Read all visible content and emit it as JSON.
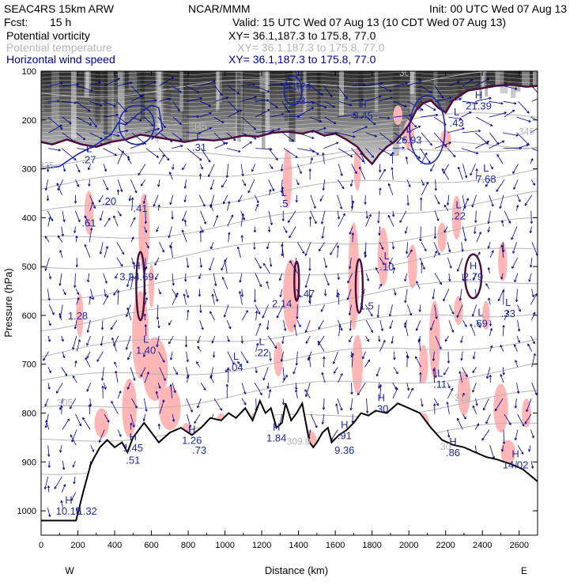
{
  "header": {
    "model": "SEAC4RS 15km ARW",
    "org": "NCAR/MMM",
    "init": "Init: 00 UTC Wed 07 Aug 13",
    "fcst_label": "Fcst:",
    "fcst_value": "15 h",
    "valid": "Valid: 15 UTC Wed 07 Aug 13 (10 CDT Wed 07 Aug 13)",
    "fields": [
      {
        "name": "Potential vorticity",
        "xy": "XY=  36.1,187.3 to 175.8, 77.0",
        "color": "#000000"
      },
      {
        "name": "Potential temperature",
        "xy": "XY=  36.1,187.3 to 175.8, 77.0",
        "color": "#b4b4b4"
      },
      {
        "name": "Horizontal wind speed",
        "xy": "XY=  36.1,187.3 to 175.8, 77.0",
        "color": "#00008b"
      }
    ]
  },
  "chart_data": {
    "type": "cross-section",
    "xlabel": "Distance (km)",
    "ylabel": "Pressure (hPa)",
    "xlim": [
      0,
      2700
    ],
    "ylim": [
      1050,
      100
    ],
    "x_ticks": [
      0,
      200,
      400,
      600,
      800,
      1000,
      1200,
      1400,
      1600,
      1800,
      2000,
      2200,
      2400,
      2600
    ],
    "y_ticks": [
      100,
      200,
      300,
      400,
      500,
      600,
      700,
      800,
      900,
      1000
    ],
    "x_end_labels": {
      "left": "W",
      "right": "E"
    },
    "colors": {
      "pv_contour": "#4b0a3c",
      "wind_contour": "#1e28a0",
      "theta": "#b4b4b4",
      "pv_fill": "#ffb6b6",
      "wind_vector": "#00008b"
    },
    "terrain": [
      [
        0,
        1020
      ],
      [
        190,
        1020
      ],
      [
        230,
        960
      ],
      [
        270,
        905
      ],
      [
        290,
        890
      ],
      [
        320,
        870
      ],
      [
        360,
        855
      ],
      [
        400,
        870
      ],
      [
        440,
        860
      ],
      [
        470,
        880
      ],
      [
        500,
        850
      ],
      [
        540,
        830
      ],
      [
        560,
        820
      ],
      [
        600,
        840
      ],
      [
        640,
        860
      ],
      [
        700,
        840
      ],
      [
        760,
        830
      ],
      [
        820,
        845
      ],
      [
        870,
        830
      ],
      [
        920,
        810
      ],
      [
        980,
        815
      ],
      [
        1020,
        800
      ],
      [
        1060,
        810
      ],
      [
        1110,
        790
      ],
      [
        1150,
        815
      ],
      [
        1190,
        775
      ],
      [
        1220,
        800
      ],
      [
        1250,
        790
      ],
      [
        1280,
        830
      ],
      [
        1310,
        820
      ],
      [
        1330,
        780
      ],
      [
        1360,
        815
      ],
      [
        1390,
        800
      ],
      [
        1420,
        780
      ],
      [
        1440,
        820
      ],
      [
        1460,
        860
      ],
      [
        1480,
        870
      ],
      [
        1500,
        860
      ],
      [
        1530,
        840
      ],
      [
        1560,
        830
      ],
      [
        1580,
        860
      ],
      [
        1620,
        845
      ],
      [
        1660,
        835
      ],
      [
        1700,
        820
      ],
      [
        1740,
        800
      ],
      [
        1780,
        805
      ],
      [
        1820,
        795
      ],
      [
        1880,
        800
      ],
      [
        1940,
        780
      ],
      [
        2000,
        790
      ],
      [
        2060,
        800
      ],
      [
        2120,
        830
      ],
      [
        2180,
        855
      ],
      [
        2240,
        865
      ],
      [
        2300,
        870
      ],
      [
        2360,
        880
      ],
      [
        2420,
        890
      ],
      [
        2480,
        895
      ],
      [
        2560,
        905
      ],
      [
        2620,
        915
      ],
      [
        2700,
        940
      ]
    ],
    "tropopause": [
      [
        0,
        245
      ],
      [
        60,
        250
      ],
      [
        140,
        240
      ],
      [
        220,
        250
      ],
      [
        300,
        255
      ],
      [
        380,
        245
      ],
      [
        460,
        240
      ],
      [
        540,
        230
      ],
      [
        620,
        235
      ],
      [
        700,
        240
      ],
      [
        780,
        245
      ],
      [
        860,
        240
      ],
      [
        940,
        242
      ],
      [
        1020,
        238
      ],
      [
        1100,
        232
      ],
      [
        1180,
        234
      ],
      [
        1260,
        226
      ],
      [
        1340,
        224
      ],
      [
        1420,
        228
      ],
      [
        1480,
        222
      ],
      [
        1540,
        232
      ],
      [
        1600,
        228
      ],
      [
        1660,
        240
      ],
      [
        1720,
        255
      ],
      [
        1760,
        275
      ],
      [
        1800,
        290
      ],
      [
        1840,
        270
      ],
      [
        1880,
        255
      ],
      [
        1920,
        245
      ],
      [
        1960,
        230
      ],
      [
        2000,
        210
      ],
      [
        2040,
        180
      ],
      [
        2080,
        165
      ],
      [
        2120,
        160
      ],
      [
        2160,
        175
      ],
      [
        2200,
        185
      ],
      [
        2240,
        160
      ],
      [
        2280,
        150
      ],
      [
        2320,
        140
      ],
      [
        2400,
        135
      ],
      [
        2480,
        130
      ],
      [
        2560,
        128
      ],
      [
        2640,
        132
      ],
      [
        2700,
        130
      ]
    ],
    "theta_labels": [
      {
        "x": 860,
        "p": 220,
        "text": "345"
      },
      {
        "x": 2640,
        "p": 230,
        "text": "345"
      },
      {
        "x": 30,
        "p": 300,
        "text": "325"
      },
      {
        "x": 1990,
        "p": 110,
        "text": "300"
      },
      {
        "x": 130,
        "p": 785,
        "text": "305"
      },
      {
        "x": 2290,
        "p": 775,
        "text": "315"
      },
      {
        "x": 1400,
        "p": 865,
        "text": "309.9"
      },
      {
        "x": 2200,
        "p": 875,
        "text": "30"
      }
    ],
    "extrema": [
      {
        "x": 1400,
        "p": 135,
        "letter": "H",
        "value": "21.24"
      },
      {
        "x": 1400,
        "p": 165,
        "letter": "",
        "value": "1.3"
      },
      {
        "x": 2380,
        "p": 175,
        "letter": "H",
        "value": "21.39"
      },
      {
        "x": 1750,
        "p": 195,
        "letter": "H",
        "value": "3.45"
      },
      {
        "x": 2260,
        "p": 210,
        "letter": "L",
        "value": ".43"
      },
      {
        "x": 2000,
        "p": 245,
        "letter": "L",
        "value": "26.93"
      },
      {
        "x": 860,
        "p": 260,
        "letter": "L",
        "value": ".31"
      },
      {
        "x": 260,
        "p": 285,
        "letter": "L",
        "value": ".27"
      },
      {
        "x": 2420,
        "p": 325,
        "letter": "L",
        "value": "7.68"
      },
      {
        "x": 370,
        "p": 370,
        "letter": "",
        "value": ".20"
      },
      {
        "x": 540,
        "p": 385,
        "letter": "",
        "value": ".41"
      },
      {
        "x": 1320,
        "p": 375,
        "letter": "L",
        "value": ".5"
      },
      {
        "x": 2270,
        "p": 400,
        "letter": "L",
        "value": ".22"
      },
      {
        "x": 260,
        "p": 415,
        "letter": "",
        "value": ".61"
      },
      {
        "x": 1880,
        "p": 505,
        "letter": "L",
        "value": ".10"
      },
      {
        "x": 2350,
        "p": 525,
        "letter": "H",
        "value": "2.79"
      },
      {
        "x": 520,
        "p": 525,
        "letter": "H",
        "value": "3.24.69"
      },
      {
        "x": 1450,
        "p": 560,
        "letter": "",
        "value": ".47"
      },
      {
        "x": 1310,
        "p": 580,
        "letter": "",
        "value": "2.14"
      },
      {
        "x": 1770,
        "p": 585,
        "letter": "",
        "value": "1.5"
      },
      {
        "x": 2540,
        "p": 600,
        "letter": "L",
        "value": ".33"
      },
      {
        "x": 2390,
        "p": 620,
        "letter": "L",
        "value": ".69"
      },
      {
        "x": 200,
        "p": 605,
        "letter": "",
        "value": "1.28"
      },
      {
        "x": 570,
        "p": 675,
        "letter": "L",
        "value": "1.40"
      },
      {
        "x": 1200,
        "p": 680,
        "letter": "L",
        "value": ".22"
      },
      {
        "x": 1060,
        "p": 710,
        "letter": "L",
        "value": ".04"
      },
      {
        "x": 2170,
        "p": 745,
        "letter": "L",
        "value": ".11"
      },
      {
        "x": 1850,
        "p": 795,
        "letter": "H",
        "value": ".30"
      },
      {
        "x": 820,
        "p": 860,
        "letter": "H",
        "value": "1.26"
      },
      {
        "x": 860,
        "p": 880,
        "letter": "",
        "value": ".73"
      },
      {
        "x": 500,
        "p": 875,
        "letter": "H",
        "value": "1.45"
      },
      {
        "x": 500,
        "p": 900,
        "letter": "",
        "value": ".51"
      },
      {
        "x": 1280,
        "p": 855,
        "letter": "H",
        "value": "1.84"
      },
      {
        "x": 1650,
        "p": 850,
        "letter": "H",
        "value": ".91"
      },
      {
        "x": 1650,
        "p": 880,
        "letter": "",
        "value": "9.36"
      },
      {
        "x": 2240,
        "p": 885,
        "letter": "H",
        "value": ".86"
      },
      {
        "x": 2580,
        "p": 910,
        "letter": "H",
        "value": "14.02"
      },
      {
        "x": 150,
        "p": 1005,
        "letter": "H",
        "value": "10.15"
      },
      {
        "x": 250,
        "p": 1005,
        "letter": "",
        "value": "1.32"
      }
    ]
  }
}
